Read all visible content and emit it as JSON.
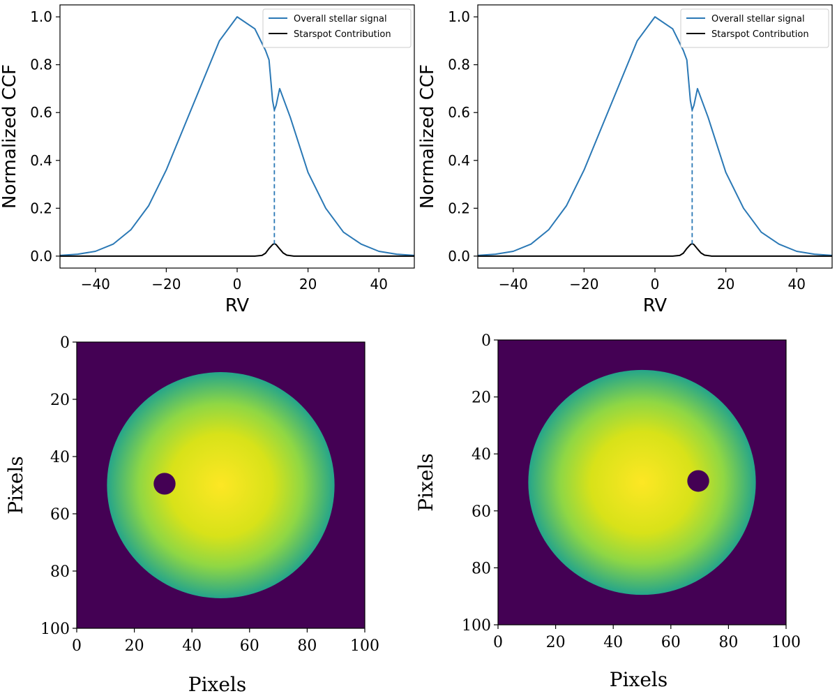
{
  "colors": {
    "signal": "#2a78b5",
    "spot": "#000000",
    "disk_edge": "#25a58a",
    "disk_center": "#fde724",
    "background": "#440154"
  },
  "chart_data": [
    {
      "id": "ccf-left",
      "type": "line",
      "xlabel": "RV",
      "ylabel": "Normalized CCF",
      "xlim": [
        -50,
        50
      ],
      "ylim": [
        -0.05,
        1.05
      ],
      "xticks": [
        -40,
        -20,
        0,
        20,
        40
      ],
      "yticks": [
        0.0,
        0.2,
        0.4,
        0.6,
        0.8,
        1.0
      ],
      "tick_labels_x": [
        "−40",
        "−20",
        "0",
        "20",
        "40"
      ],
      "tick_labels_y": [
        "0.0",
        "0.2",
        "0.4",
        "0.6",
        "0.8",
        "1.0"
      ],
      "legend": {
        "position": "top-right",
        "entries": [
          "Overall stellar signal",
          "Starspot Contribution"
        ]
      },
      "series": [
        {
          "name": "Overall stellar signal",
          "x": [
            -50,
            -45,
            -40,
            -35,
            -30,
            -25,
            -20,
            -15,
            -10,
            -5,
            0,
            5,
            8,
            9,
            10,
            10.5,
            11,
            12,
            15,
            20,
            25,
            30,
            35,
            40,
            45,
            50
          ],
          "y": [
            0.003,
            0.008,
            0.02,
            0.05,
            0.11,
            0.21,
            0.36,
            0.54,
            0.72,
            0.9,
            1.0,
            0.95,
            0.86,
            0.82,
            0.65,
            0.61,
            0.63,
            0.7,
            0.58,
            0.35,
            0.2,
            0.1,
            0.05,
            0.02,
            0.008,
            0.003
          ]
        },
        {
          "name": "Starspot Contribution",
          "x": [
            -50,
            5,
            7,
            8,
            9,
            10,
            10.5,
            11,
            12,
            13,
            14,
            16,
            50
          ],
          "y": [
            0,
            0,
            0.003,
            0.012,
            0.032,
            0.048,
            0.052,
            0.048,
            0.03,
            0.013,
            0.004,
            0,
            0
          ]
        }
      ],
      "annotations": [
        {
          "type": "vline-dashed",
          "x": 10.5,
          "y_from": 0.05,
          "y_to": 0.61
        }
      ]
    },
    {
      "id": "ccf-right",
      "type": "line",
      "xlabel": "RV",
      "ylabel": "Normalized CCF",
      "xlim": [
        -50,
        50
      ],
      "ylim": [
        -0.05,
        1.05
      ],
      "xticks": [
        -40,
        -20,
        0,
        20,
        40
      ],
      "yticks": [
        0.0,
        0.2,
        0.4,
        0.6,
        0.8,
        1.0
      ],
      "tick_labels_x": [
        "−40",
        "−20",
        "0",
        "20",
        "40"
      ],
      "tick_labels_y": [
        "0.0",
        "0.2",
        "0.4",
        "0.6",
        "0.8",
        "1.0"
      ],
      "legend": {
        "position": "top-right",
        "entries": [
          "Overall stellar signal",
          "Starspot Contribution"
        ]
      },
      "series": [
        {
          "name": "Overall stellar signal",
          "x": [
            -50,
            -45,
            -40,
            -35,
            -30,
            -25,
            -20,
            -15,
            -10,
            -5,
            0,
            5,
            8,
            9,
            10,
            10.5,
            11,
            12,
            15,
            20,
            25,
            30,
            35,
            40,
            45,
            50
          ],
          "y": [
            0.003,
            0.008,
            0.02,
            0.05,
            0.11,
            0.21,
            0.36,
            0.54,
            0.72,
            0.9,
            1.0,
            0.95,
            0.86,
            0.82,
            0.65,
            0.61,
            0.63,
            0.7,
            0.58,
            0.35,
            0.2,
            0.1,
            0.05,
            0.02,
            0.008,
            0.003
          ]
        },
        {
          "name": "Starspot Contribution",
          "x": [
            -50,
            5,
            7,
            8,
            9,
            10,
            10.5,
            11,
            12,
            13,
            14,
            16,
            50
          ],
          "y": [
            0,
            0,
            0.003,
            0.012,
            0.032,
            0.048,
            0.052,
            0.048,
            0.03,
            0.013,
            0.004,
            0,
            0
          ]
        }
      ],
      "annotations": [
        {
          "type": "vline-dashed",
          "x": 10.5,
          "y_from": 0.05,
          "y_to": 0.61
        }
      ]
    },
    {
      "id": "disk-left",
      "type": "heatmap",
      "xlabel": "Pixels",
      "ylabel": "Pixels",
      "xlim": [
        0,
        100
      ],
      "ylim": [
        100,
        0
      ],
      "xticks": [
        0,
        20,
        40,
        60,
        80,
        100
      ],
      "yticks": [
        0,
        20,
        40,
        60,
        80,
        100
      ],
      "tick_labels_x": [
        "0",
        "20",
        "40",
        "60",
        "80",
        "100"
      ],
      "tick_labels_y": [
        "0",
        "20",
        "40",
        "60",
        "80",
        "100"
      ],
      "disk": {
        "center": [
          50,
          50
        ],
        "radius": 39.5
      },
      "spot": {
        "center": [
          30.5,
          49.5
        ],
        "radius": 3.8
      }
    },
    {
      "id": "disk-right",
      "type": "heatmap",
      "xlabel": "Pixels",
      "ylabel": "Pixels",
      "xlim": [
        0,
        100
      ],
      "ylim": [
        100,
        0
      ],
      "xticks": [
        0,
        20,
        40,
        60,
        80,
        100
      ],
      "yticks": [
        0,
        20,
        40,
        60,
        80,
        100
      ],
      "tick_labels_x": [
        "0",
        "20",
        "40",
        "60",
        "80",
        "100"
      ],
      "tick_labels_y": [
        "0",
        "20",
        "40",
        "60",
        "80",
        "100"
      ],
      "disk": {
        "center": [
          50,
          50
        ],
        "radius": 39.5
      },
      "spot": {
        "center": [
          69.5,
          49.5
        ],
        "radius": 3.8
      }
    }
  ]
}
